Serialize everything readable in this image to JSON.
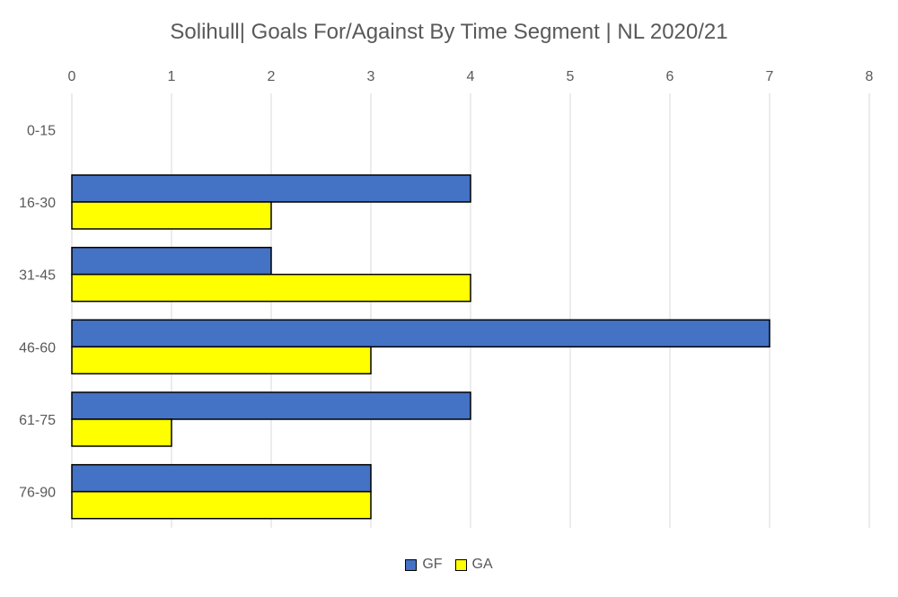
{
  "chart_data": {
    "type": "bar",
    "orientation": "horizontal",
    "title": "Solihull| Goals For/Against By Time Segment | NL 2020/21",
    "categories": [
      "0-15",
      "16-30",
      "31-45",
      "46-60",
      "61-75",
      "76-90"
    ],
    "series": [
      {
        "name": "GF",
        "values": [
          0,
          4,
          2,
          7,
          4,
          3
        ],
        "color": "#4472C4"
      },
      {
        "name": "GA",
        "values": [
          0,
          2,
          4,
          3,
          1,
          3
        ],
        "color": "#FFFF00"
      }
    ],
    "xlim": [
      0,
      8
    ],
    "xticks": [
      0,
      1,
      2,
      3,
      4,
      5,
      6,
      7,
      8
    ],
    "x_axis_position": "top",
    "grid": true,
    "legend_position": "bottom"
  }
}
